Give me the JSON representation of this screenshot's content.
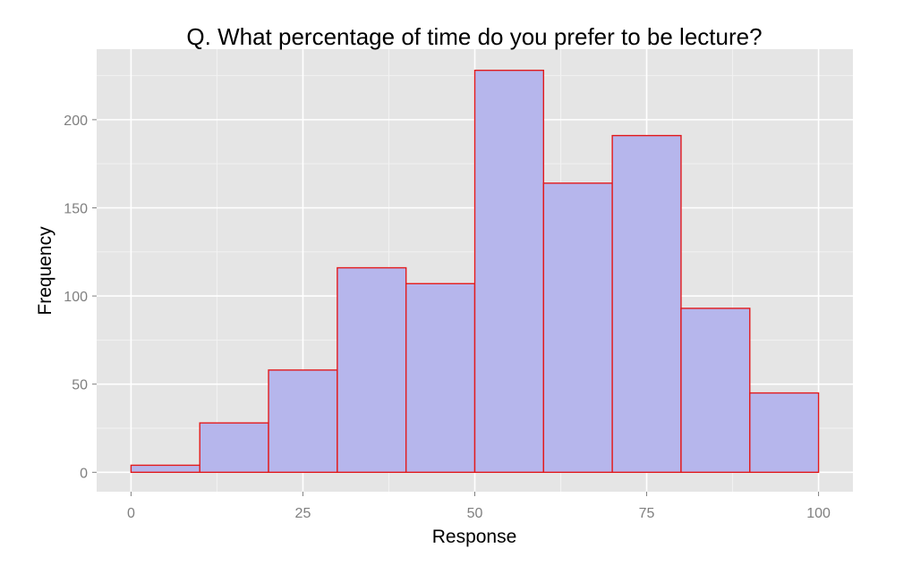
{
  "chart_data": {
    "type": "bar",
    "title": "Q. What percentage of time do you prefer to be lecture?",
    "xlabel": "Response",
    "ylabel": "Frequency",
    "bins": [
      {
        "x0": 0,
        "x1": 10,
        "value": 4
      },
      {
        "x0": 10,
        "x1": 20,
        "value": 28
      },
      {
        "x0": 20,
        "x1": 30,
        "value": 58
      },
      {
        "x0": 30,
        "x1": 40,
        "value": 116
      },
      {
        "x0": 40,
        "x1": 50,
        "value": 107
      },
      {
        "x0": 50,
        "x1": 60,
        "value": 228
      },
      {
        "x0": 60,
        "x1": 70,
        "value": 164
      },
      {
        "x0": 70,
        "x1": 80,
        "value": 191
      },
      {
        "x0": 80,
        "x1": 90,
        "value": 93
      },
      {
        "x0": 90,
        "x1": 100,
        "value": 45
      }
    ],
    "xlim": [
      -5,
      105
    ],
    "ylim": [
      -11,
      240
    ],
    "x_ticks": [
      0,
      25,
      50,
      75,
      100
    ],
    "x_tick_labels": [
      "0",
      "25",
      "50",
      "75",
      "100"
    ],
    "y_ticks": [
      0,
      50,
      100,
      150,
      200
    ],
    "y_tick_labels": [
      "0",
      "50",
      "100",
      "150",
      "200"
    ],
    "grid": true,
    "colors": {
      "panel_background": "#e5e5e5",
      "grid_major": "#ffffff",
      "grid_minor": "#f2f2f2",
      "bar_fill": "#b6b6ec",
      "bar_stroke": "#e31a1c",
      "tick_text": "#7f7f7f",
      "tick_mark": "#7f7f7f"
    }
  }
}
